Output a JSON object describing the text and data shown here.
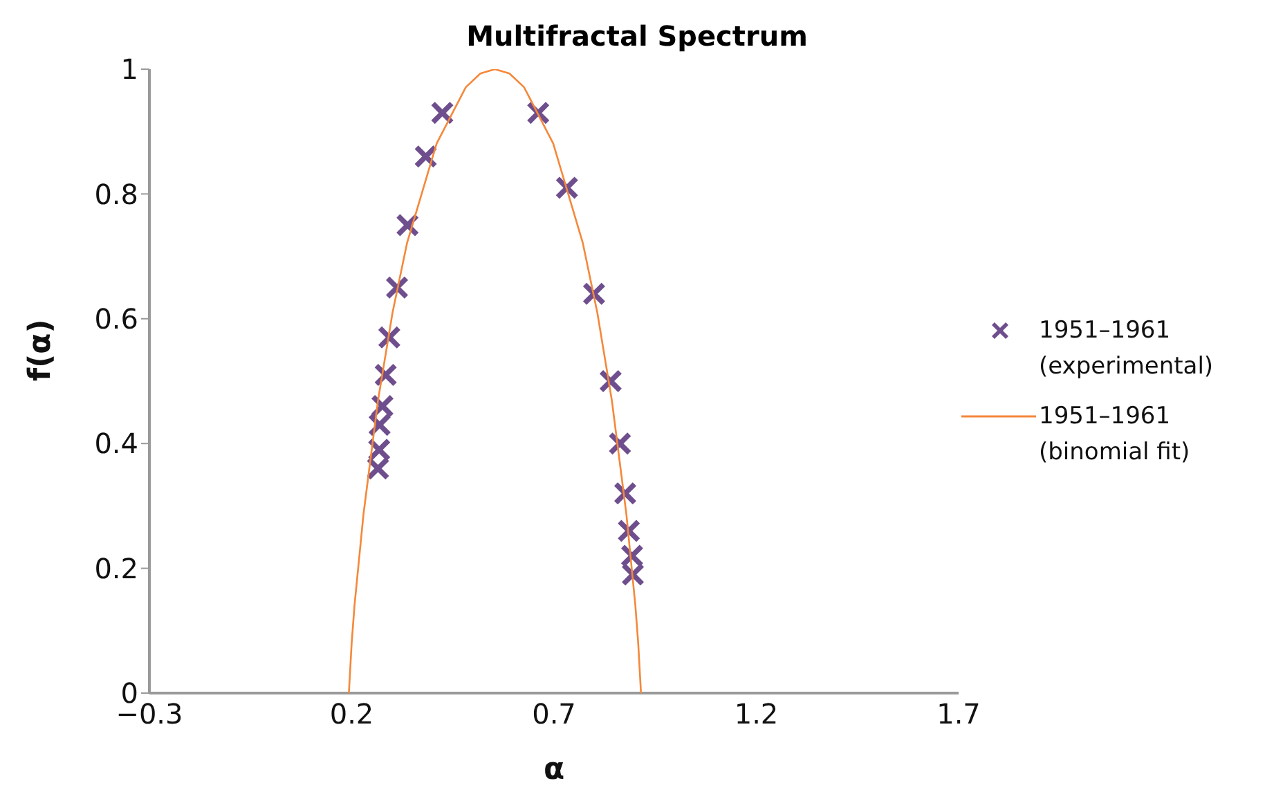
{
  "chart_data": {
    "type": "scatter",
    "title": "Multifractal Spectrum",
    "xlabel": "α",
    "ylabel": "f(α)",
    "xlim": [
      -0.3,
      1.7
    ],
    "xticks": [
      {
        "value": -0.3,
        "label": "−0.3"
      },
      0.2,
      0.7,
      1.2,
      1.7
    ],
    "ylim": [
      0,
      1
    ],
    "yticks": [
      0,
      0.2,
      0.4,
      0.6,
      0.8,
      1
    ],
    "grid": false,
    "legend": "right",
    "marker": "cross",
    "series": [
      {
        "name": "1951–1961 (experimental)",
        "color": "#6f4e8e",
        "x": [
          0.424,
          0.383,
          0.338,
          0.312,
          0.293,
          0.284,
          0.276,
          0.269,
          0.268,
          0.265,
          0.661,
          0.732,
          0.799,
          0.84,
          0.863,
          0.876,
          0.885,
          0.893,
          0.895
        ],
        "values": [
          0.93,
          0.86,
          0.75,
          0.65,
          0.57,
          0.51,
          0.46,
          0.43,
          0.39,
          0.36,
          0.93,
          0.81,
          0.64,
          0.5,
          0.4,
          0.32,
          0.26,
          0.22,
          0.19
        ]
      },
      {
        "name": "1951–1961 (binomial fit)",
        "type": "line",
        "color": "#f5883a",
        "marker": "none",
        "line_style": "solid",
        "x": [
          0.193,
          0.2,
          0.207,
          0.229,
          0.265,
          0.301,
          0.337,
          0.41,
          0.482,
          0.518,
          0.554,
          0.59,
          0.626,
          0.698,
          0.771,
          0.807,
          0.843,
          0.879,
          0.901,
          0.908,
          0.915
        ],
        "values": [
          0,
          0.081,
          0.141,
          0.286,
          0.469,
          0.61,
          0.722,
          0.881,
          0.971,
          0.993,
          1,
          0.993,
          0.971,
          0.881,
          0.722,
          0.61,
          0.469,
          0.286,
          0.141,
          0.081,
          0
        ]
      }
    ]
  }
}
